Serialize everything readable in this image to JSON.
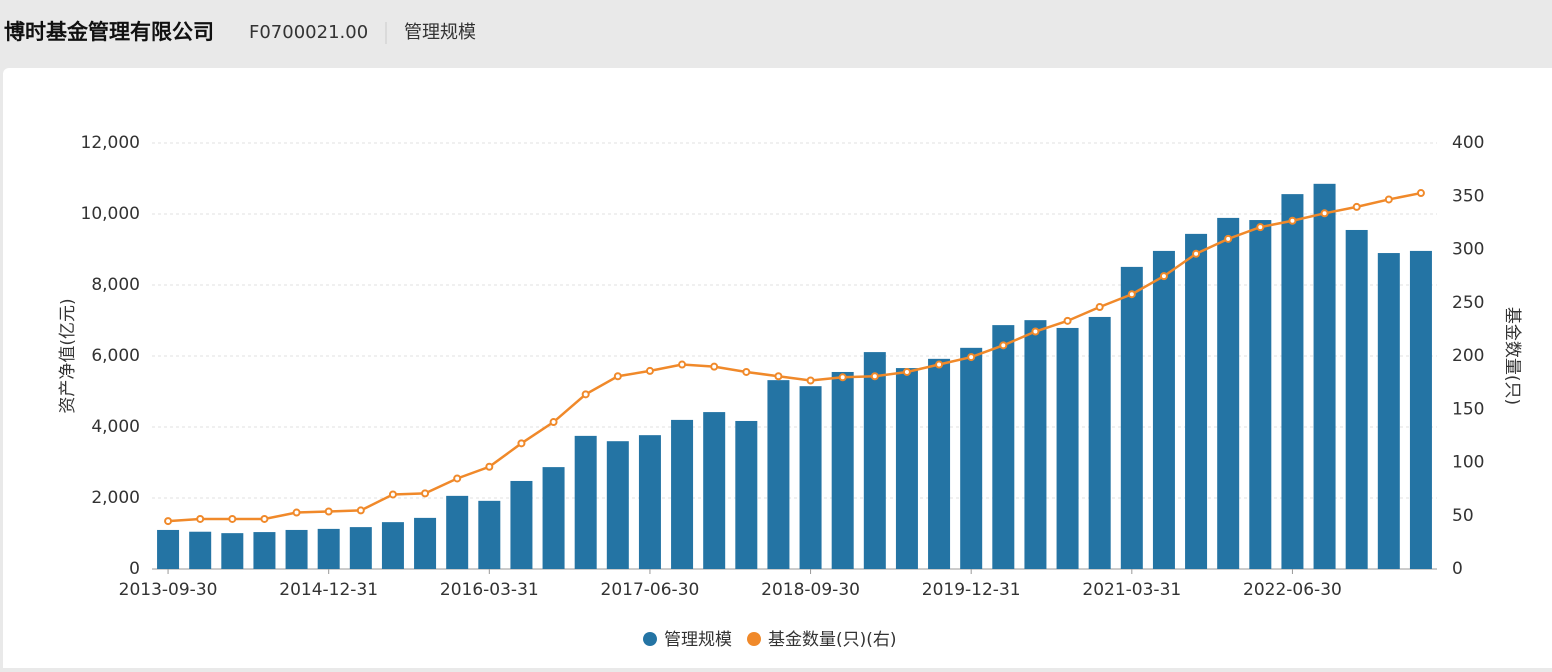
{
  "header": {
    "title": "博时基金管理有限公司",
    "code": "F0700021.00",
    "tab": "管理规模"
  },
  "chart_data": {
    "type": "combo",
    "y_label": "资产净值(亿元)",
    "y2_label": "基金数量(只)",
    "categories": [
      "2013-09-30",
      null,
      null,
      null,
      null,
      "2014-12-31",
      null,
      null,
      null,
      null,
      "2016-03-31",
      null,
      null,
      null,
      null,
      "2017-06-30",
      null,
      null,
      null,
      null,
      "2018-09-30",
      null,
      null,
      null,
      null,
      "2019-12-31",
      null,
      null,
      null,
      null,
      "2021-03-31",
      null,
      null,
      null,
      null,
      "2022-06-30",
      null,
      null,
      null,
      null
    ],
    "series": [
      {
        "name": "管理规模",
        "type": "bar",
        "color": "#2474a4",
        "values": [
          1100,
          1050,
          1010,
          1040,
          1100,
          1130,
          1180,
          1320,
          1440,
          2060,
          1920,
          2480,
          2870,
          3750,
          3600,
          3770,
          4200,
          4420,
          4170,
          5320,
          5150,
          5550,
          6110,
          5660,
          5920,
          6230,
          6870,
          7010,
          6790,
          7100,
          8510,
          8960,
          9440,
          9890,
          9830,
          10560,
          10850,
          9550,
          8900,
          8960
        ]
      },
      {
        "name": "基金数量(只)(右)",
        "type": "line",
        "axis": "y2",
        "color": "#f0892a",
        "values": [
          45,
          47,
          47,
          47,
          53,
          54,
          55,
          70,
          71,
          85,
          96,
          118,
          138,
          164,
          181,
          186,
          192,
          190,
          185,
          181,
          177,
          180,
          181,
          185,
          192,
          199,
          210,
          223,
          233,
          246,
          258,
          275,
          296,
          310,
          321,
          327,
          334,
          340,
          347,
          353
        ]
      }
    ],
    "ylim": [
      0,
      12000
    ],
    "yticks": [
      0,
      {
        "value": 2000,
        "label": "2,000"
      },
      {
        "value": 4000,
        "label": "4,000"
      },
      {
        "value": 6000,
        "label": "6,000"
      },
      {
        "value": 8000,
        "label": "8,000"
      },
      {
        "value": 10000,
        "label": "10,000"
      },
      {
        "value": 12000,
        "label": "12,000"
      }
    ],
    "y2lim": [
      0,
      400
    ],
    "y2ticks": [
      0,
      50,
      100,
      150,
      200,
      250,
      300,
      350,
      400
    ],
    "grid": true
  }
}
